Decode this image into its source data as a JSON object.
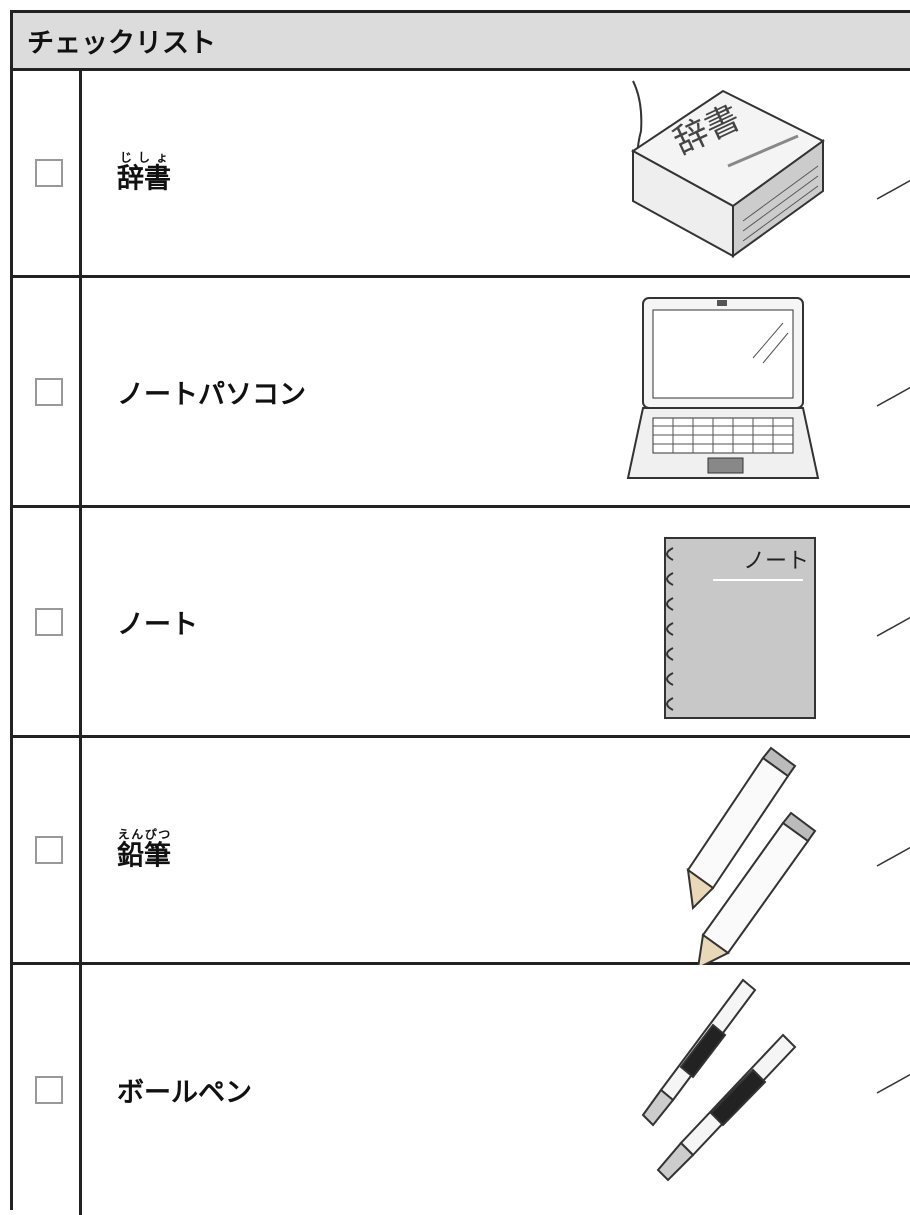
{
  "header": {
    "title": "チェックリスト"
  },
  "items": [
    {
      "label": "辞書",
      "ruby": "じしょ",
      "image_text": "辞書"
    },
    {
      "label": "ノートパソコン"
    },
    {
      "label": "ノート",
      "image_text": "ノート"
    },
    {
      "label": "鉛筆",
      "ruby": "えんぴつ"
    },
    {
      "label": "ボールペン"
    }
  ]
}
